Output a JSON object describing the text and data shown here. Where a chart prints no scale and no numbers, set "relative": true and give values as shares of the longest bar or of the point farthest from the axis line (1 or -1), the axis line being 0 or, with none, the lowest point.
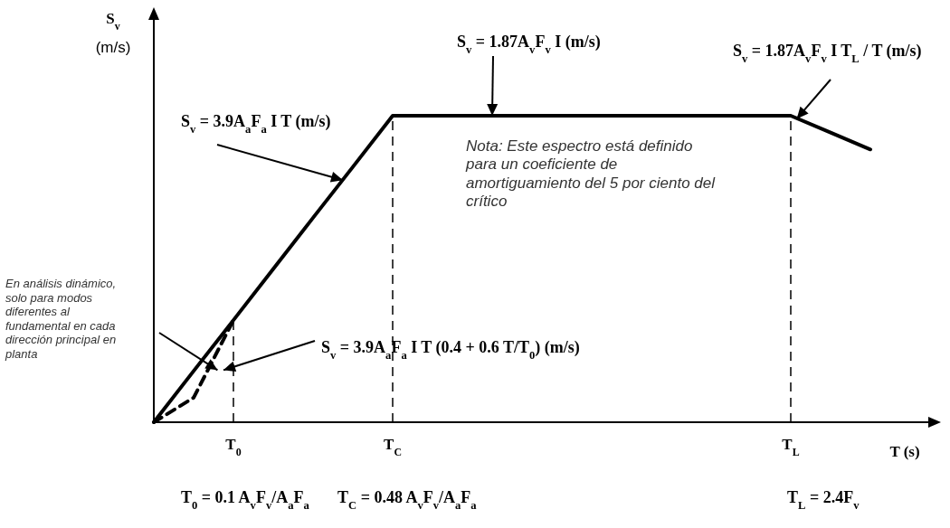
{
  "chart_data": {
    "type": "line",
    "relative": true,
    "xlabel": "T (s)",
    "ylabel": "S$_{v}$ (m/s)",
    "categories": [
      null,
      null,
      "T$_{0}$",
      null,
      null,
      null,
      "T$_{C}$",
      null,
      null,
      null,
      null,
      null,
      null,
      null,
      null,
      null,
      "T$_{L}$",
      null,
      null,
      null
    ],
    "series": [
      {
        "color": "#000000",
        "line_style": "solid",
        "values": [
          0,
          0.167,
          0.333,
          0.5,
          0.667,
          0.833,
          1,
          1,
          1,
          1,
          1,
          1,
          1,
          1,
          1,
          1,
          1,
          0.945,
          0.89,
          null
        ]
      },
      {
        "color": "#000000",
        "line_style": "dashed",
        "values": [
          0,
          0.08,
          0.333,
          null,
          null,
          null,
          null,
          null,
          null,
          null,
          null,
          null,
          null,
          null,
          null,
          null,
          null,
          null,
          null,
          null
        ]
      }
    ],
    "ref_lines": [
      {
        "axis": "x",
        "value": "T$_{0}$",
        "line_style": "dashed",
        "color": "#000000"
      },
      {
        "axis": "x",
        "value": "T$_{C}$",
        "line_style": "dashed",
        "color": "#000000"
      },
      {
        "axis": "x",
        "value": "T$_{L}$",
        "line_style": "dashed",
        "color": "#000000"
      }
    ],
    "annotations": [
      "S$_{v}$ = 3.9A$_{a}$F$_{a}$ I T (m/s)",
      "S$_{v}$ = 1.87A$_{v}$F$_{v}$ I (m/s)",
      "S$_{v}$ = 1.87A$_{v}$F$_{v}$ I T$_{L}$ / T (m/s)",
      "S$_{v}$ = 3.9A$_{a}$F$_{a}$ I T (0.4 + 0.6 T/T$_{0}$) (m/s)",
      "En análisis dinámico, solo para modos diferentes al fundamental en cada dirección principal en planta",
      "Nota: Este espectro está definido para un coeficiente de amortiguamiento del 5 por ciento del crítico",
      "T$_{0}$ = 0.1 A$_{v}$F$_{v}$/A$_{a}$F$_{a}$",
      "T$_{C}$ = 0.48 A$_{v}$F$_{v}$/A$_{a}$F$_{a}$",
      "T$_{L}$ = 2.4F$_{v}$"
    ]
  }
}
